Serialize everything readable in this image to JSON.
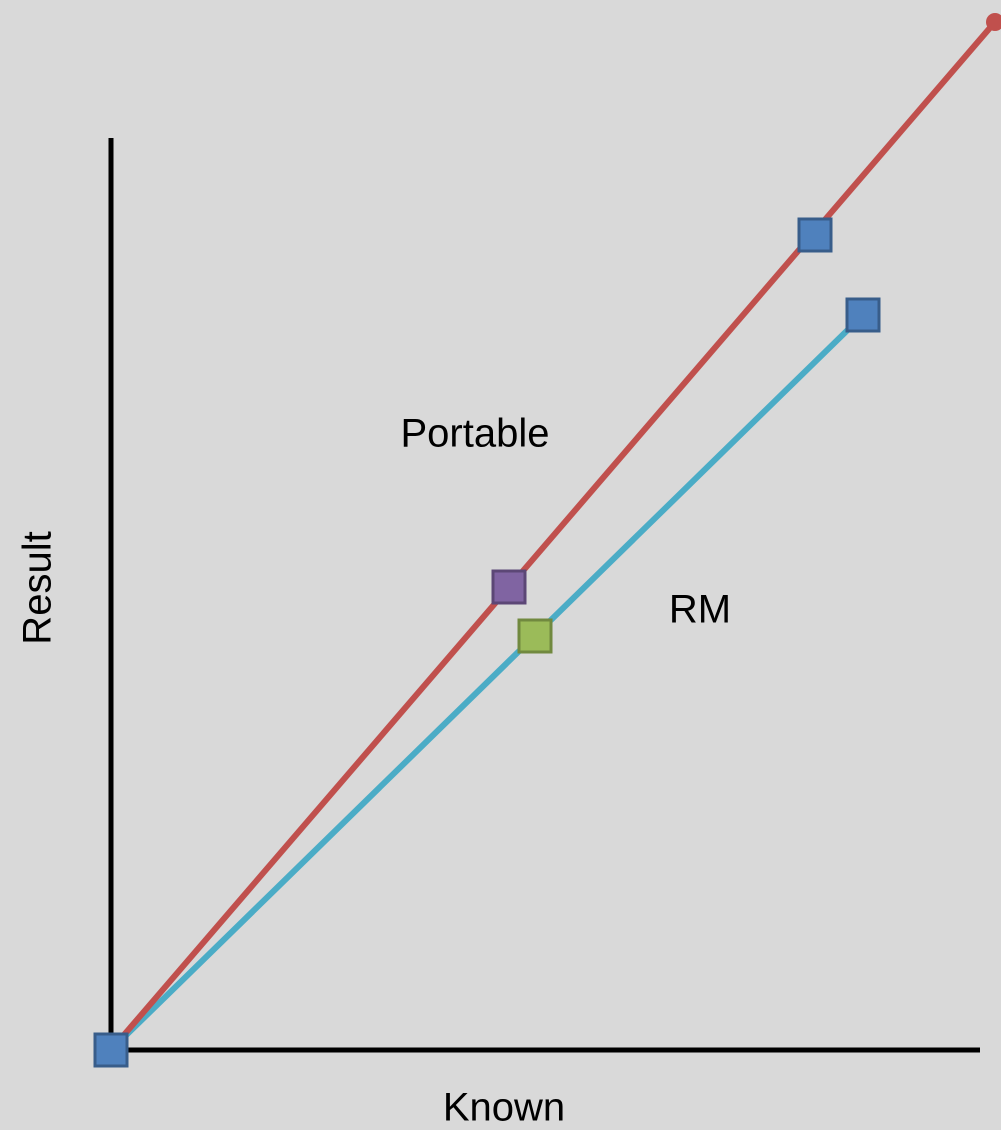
{
  "axes": {
    "y_label": "Result",
    "x_label": "Known"
  },
  "labels": {
    "upper_line": "Portable",
    "lower_line": "RM"
  }
}
